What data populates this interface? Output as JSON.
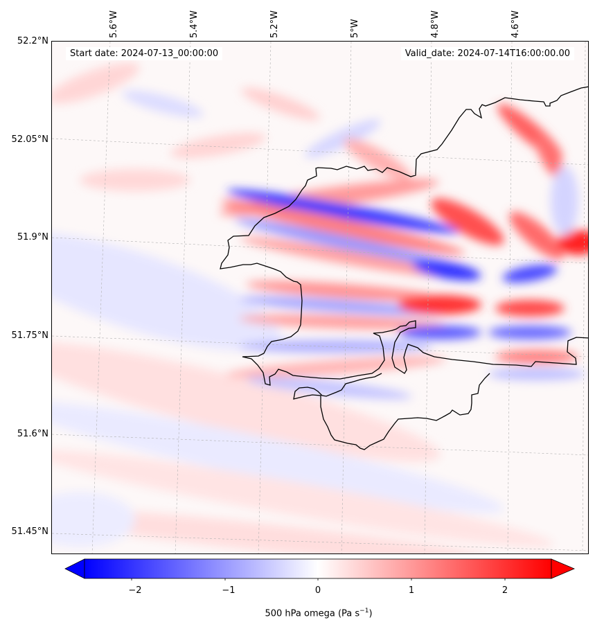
{
  "map": {
    "start_date_label": "Start date: 2024-07-13_00:00:00",
    "valid_date_label": "Valid_date: 2024-07-14T16:00:00.00",
    "lat_ticks": [
      "52.2°N",
      "52.05°N",
      "51.9°N",
      "51.75°N",
      "51.6°N",
      "51.45°N"
    ],
    "lon_ticks": [
      "5.6°W",
      "5.4°W",
      "5.2°W",
      "5°W",
      "4.8°W",
      "4.6°W"
    ],
    "field_colors": {
      "negative": "#0000ff",
      "neutral": "#ffffff",
      "positive": "#ff0000",
      "coastline": "#000000"
    }
  },
  "colorbar": {
    "ticks": [
      "−2",
      "−1",
      "0",
      "1",
      "2"
    ],
    "title_main": "500 hPa omega (Pa s",
    "title_exp": "−1",
    "title_end": ")",
    "range": [
      -2.6,
      2.6
    ]
  }
}
